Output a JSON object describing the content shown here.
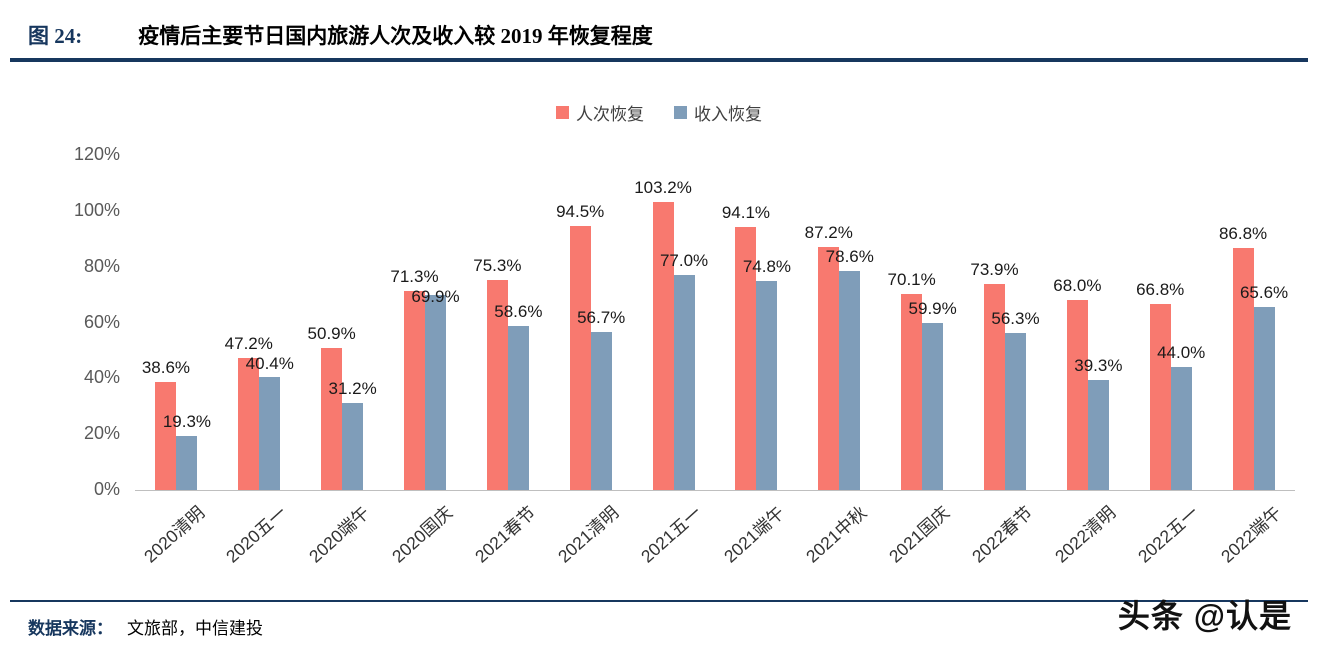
{
  "header": {
    "figure_label": "图 24:",
    "title": "疫情后主要节日国内旅游人次及收入较 2019 年恢复程度"
  },
  "footer": {
    "source_label": "数据来源：",
    "source_text": "文旅部，中信建投"
  },
  "watermark": "头条 @认是",
  "chart_data": {
    "type": "bar",
    "title": "疫情后主要节日国内旅游人次及收入较 2019 年恢复程度",
    "categories": [
      "2020清明",
      "2020五一",
      "2020端午",
      "2020国庆",
      "2021春节",
      "2021清明",
      "2021五一",
      "2021端午",
      "2021中秋",
      "2021国庆",
      "2022春节",
      "2022清明",
      "2022五一",
      "2022端午"
    ],
    "series": [
      {
        "name": "人次恢复",
        "color": "#F8796F",
        "values": [
          38.6,
          47.2,
          50.9,
          71.3,
          75.3,
          94.5,
          103.2,
          94.1,
          87.2,
          70.1,
          73.9,
          68.0,
          66.8,
          86.8
        ]
      },
      {
        "name": "收入恢复",
        "color": "#7F9DB9",
        "values": [
          19.3,
          40.4,
          31.2,
          69.9,
          58.6,
          56.7,
          77.0,
          74.8,
          78.6,
          59.9,
          56.3,
          39.3,
          44.0,
          65.6
        ]
      }
    ],
    "xlabel": "",
    "ylabel": "",
    "ylim": [
      0,
      120
    ],
    "yticks": [
      0,
      20,
      40,
      60,
      80,
      100,
      120
    ],
    "ytick_format": "percent",
    "value_label_format": "0.1%",
    "legend_position": "top",
    "grid": false
  }
}
